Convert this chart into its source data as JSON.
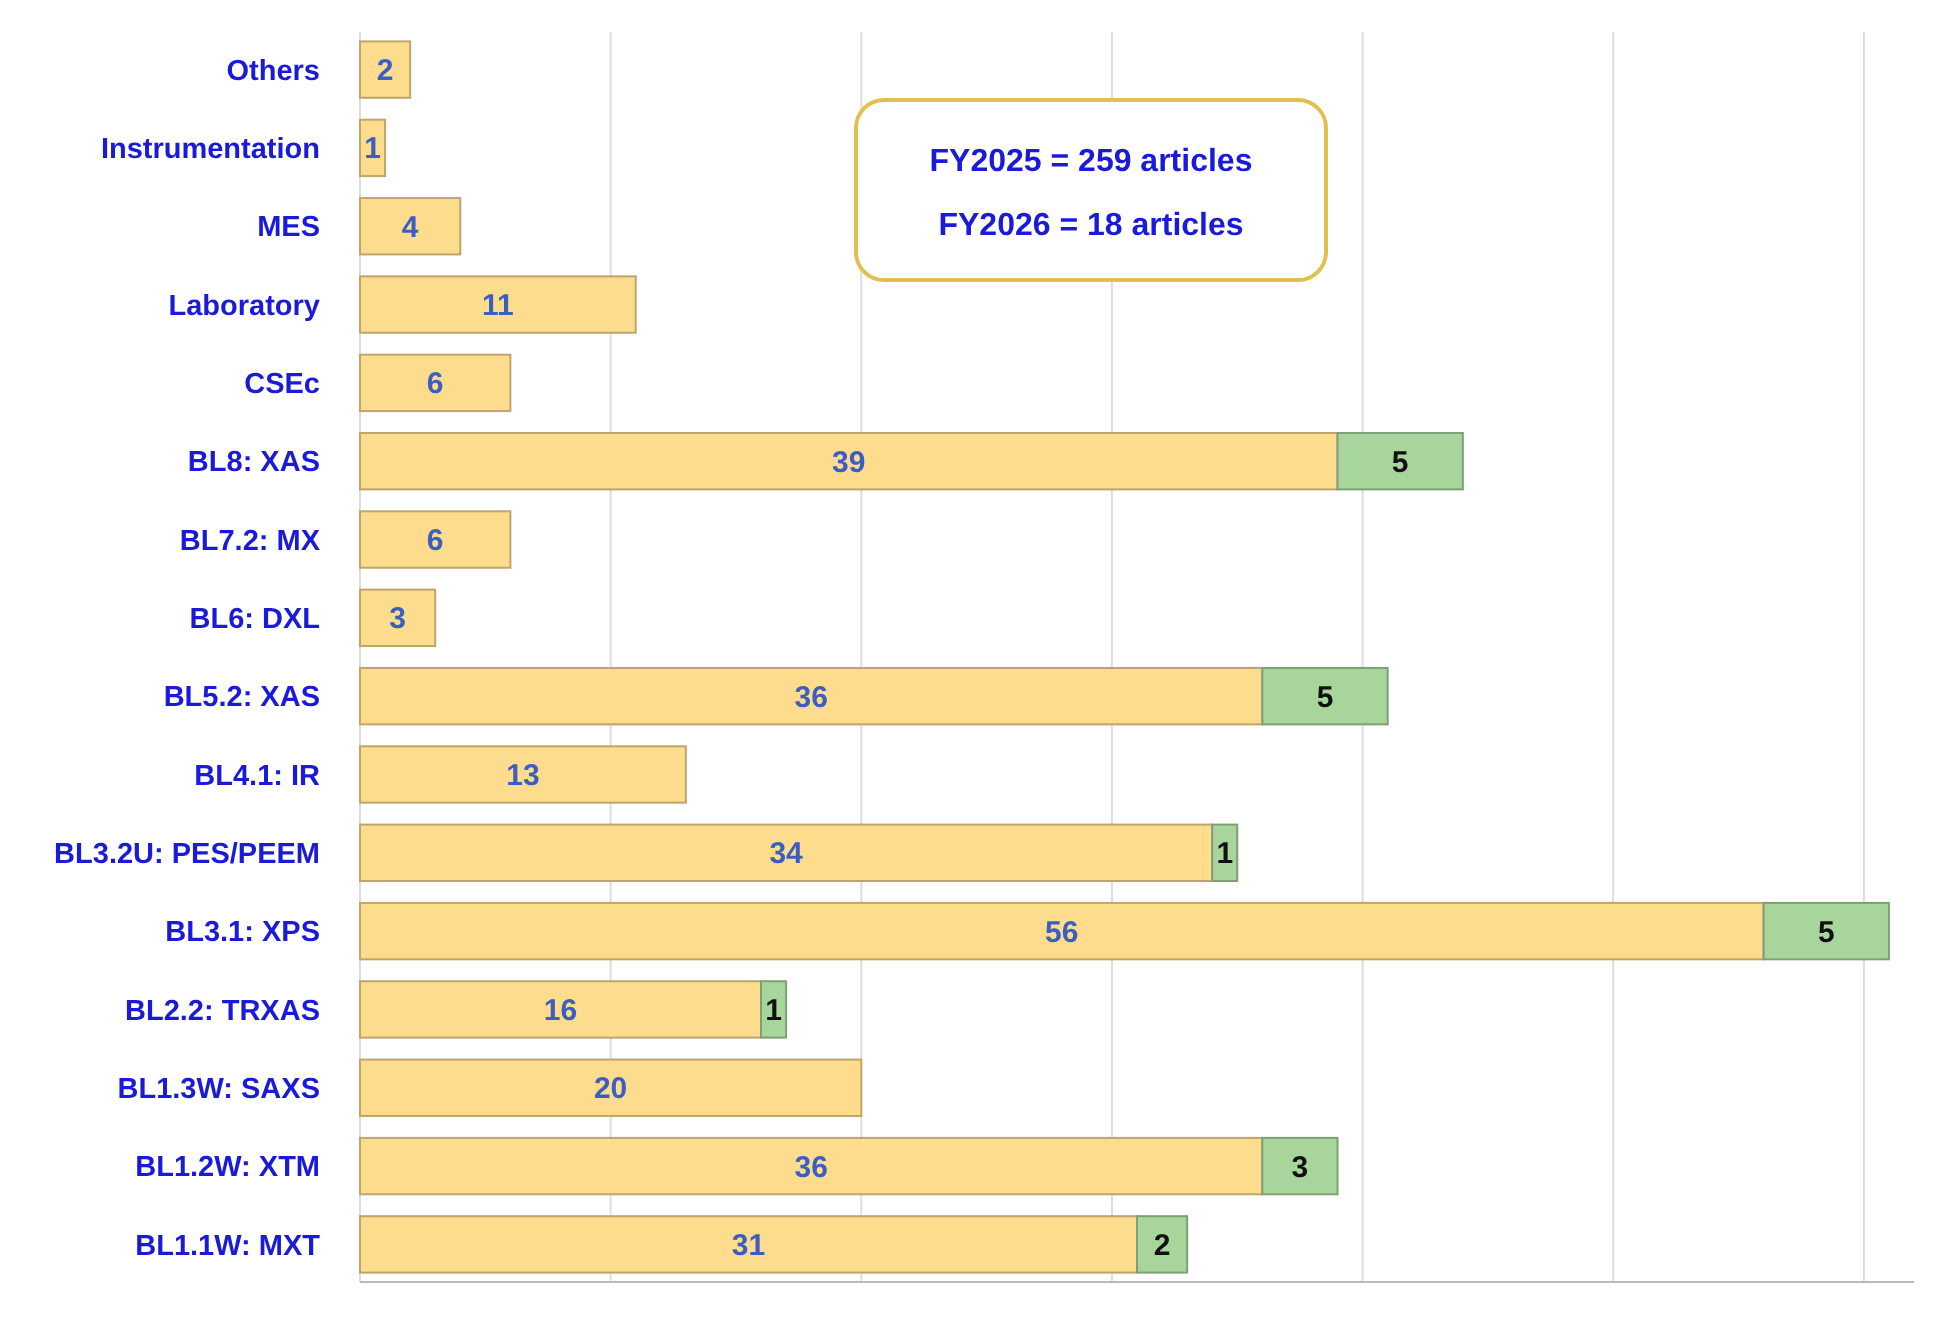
{
  "chart_data": {
    "type": "bar",
    "orientation": "horizontal",
    "stacked": true,
    "data_labels": true,
    "grid": "x",
    "tick_labels": "y",
    "categories": [
      "Others",
      "Instrumentation",
      "MES",
      "Laboratory",
      "CSEc",
      "BL8: XAS",
      "BL7.2: MX",
      "BL6: DXL",
      "BL5.2: XAS",
      "BL4.1: IR",
      "BL3.2U: PES/PEEM",
      "BL3.1: XPS",
      "BL2.2: TRXAS",
      "BL1.3W: SAXS",
      "BL1.2W: XTM",
      "BL1.1W: MXT"
    ],
    "xlim": [
      0,
      62
    ],
    "xticks": [
      {
        "value": 0,
        "label": null
      },
      {
        "value": 10,
        "label": null
      },
      {
        "value": 20,
        "label": null
      },
      {
        "value": 30,
        "label": null
      },
      {
        "value": 40,
        "label": null
      },
      {
        "value": 50,
        "label": null
      },
      {
        "value": 60,
        "label": null
      }
    ],
    "series": [
      {
        "color": "#fddc8e",
        "values": [
          2,
          1,
          4,
          11,
          6,
          39,
          6,
          3,
          36,
          13,
          34,
          56,
          16,
          20,
          36,
          31
        ]
      },
      {
        "color": "#a8d59c",
        "values": [
          null,
          null,
          null,
          null,
          null,
          5,
          null,
          null,
          5,
          null,
          1,
          5,
          1,
          null,
          3,
          2
        ]
      }
    ],
    "annotations": [
      "FY2025 = 259 articles",
      "FY2026 = 18 articles"
    ]
  }
}
